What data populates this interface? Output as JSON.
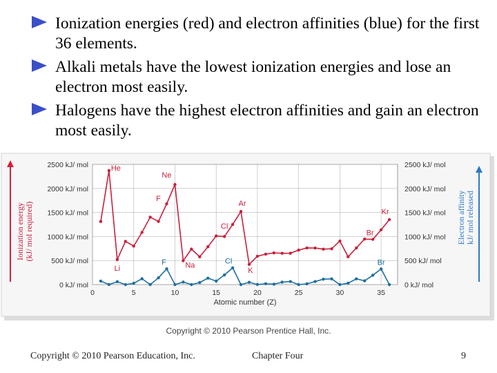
{
  "slide": {
    "bullets": [
      "Ionization energies (red) and electron affinities (blue) for the first 36 elements.",
      "Alkali metals have the lowest ionization energies and lose an electron most easily.",
      "Halogens have the highest electron affinities and gain an electron most easily."
    ],
    "bullet_color": "#3a4fc8",
    "figure_copyright": "Copyright © 2010 Pearson Prentice Hall, Inc.",
    "footer_left": "Copyright © 2010 Pearson Education, Inc.",
    "footer_center": "Chapter Four",
    "page_number": "9"
  },
  "chart_data": {
    "type": "line",
    "xlabel": "Atomic number (Z)",
    "ylabel_left": [
      "Ionization energy",
      "(kJ/ mol required)"
    ],
    "ylabel_right": [
      "Electron affinity",
      "kJ/ mol released"
    ],
    "xlim": [
      0,
      37
    ],
    "ylim": [
      0,
      2500
    ],
    "x_ticks": [
      0,
      5,
      10,
      15,
      20,
      25,
      30,
      35
    ],
    "y_ticks": [
      0,
      500,
      1000,
      1500,
      2000,
      2500
    ],
    "y_tick_labels": [
      "0 kJ/ mol",
      "500 kJ/ mol",
      "1000 kJ/ mol",
      "1500 kJ/ mol",
      "2000 kJ/ mol",
      "2500 kJ/ mol"
    ],
    "grid": true,
    "colors": {
      "ionization": "#c8203c",
      "affinity": "#1e6fa0",
      "left_arrow": "#d61e3c",
      "right_arrow": "#2e78c8",
      "grid": "#b4b4b4"
    },
    "x": [
      1,
      2,
      3,
      4,
      5,
      6,
      7,
      8,
      9,
      10,
      11,
      12,
      13,
      14,
      15,
      16,
      17,
      18,
      19,
      20,
      21,
      22,
      23,
      24,
      25,
      26,
      27,
      28,
      29,
      30,
      31,
      32,
      33,
      34,
      35,
      36
    ],
    "series": [
      {
        "values": [
          1312,
          2372,
          520,
          899,
          801,
          1086,
          1402,
          1314,
          1681,
          2081,
          496,
          738,
          578,
          787,
          1012,
          1000,
          1251,
          1521,
          419,
          590,
          633,
          659,
          651,
          653,
          717,
          762,
          760,
          737,
          745,
          906,
          579,
          762,
          947,
          941,
          1140,
          1351
        ]
      },
      {
        "values": [
          73,
          0,
          60,
          0,
          27,
          122,
          0,
          141,
          328,
          0,
          53,
          0,
          43,
          134,
          72,
          200,
          349,
          0,
          48,
          2,
          18,
          8,
          51,
          64,
          0,
          16,
          64,
          112,
          119,
          0,
          29,
          119,
          78,
          195,
          325,
          0
        ]
      }
    ],
    "annotations": [
      {
        "text": "He",
        "x": 2,
        "y": 2372,
        "series": "ionization"
      },
      {
        "text": "Ne",
        "x": 10,
        "y": 2081,
        "series": "ionization"
      },
      {
        "text": "F",
        "x": 9,
        "y": 1681,
        "series": "ionization"
      },
      {
        "text": "Ar",
        "x": 18,
        "y": 1521,
        "series": "ionization"
      },
      {
        "text": "Cl",
        "x": 17,
        "y": 1251,
        "series": "ionization"
      },
      {
        "text": "Kr",
        "x": 36,
        "y": 1351,
        "series": "ionization"
      },
      {
        "text": "Br",
        "x": 35,
        "y": 1140,
        "series": "ionization"
      },
      {
        "text": "Li",
        "x": 3,
        "y": 520,
        "series": "ionization"
      },
      {
        "text": "Na",
        "x": 11,
        "y": 496,
        "series": "ionization"
      },
      {
        "text": "K",
        "x": 19,
        "y": 419,
        "series": "ionization"
      },
      {
        "text": "F",
        "x": 9,
        "y": 328,
        "series": "affinity"
      },
      {
        "text": "Cl",
        "x": 17,
        "y": 349,
        "series": "affinity"
      },
      {
        "text": "Br",
        "x": 35,
        "y": 325,
        "series": "affinity"
      }
    ]
  }
}
